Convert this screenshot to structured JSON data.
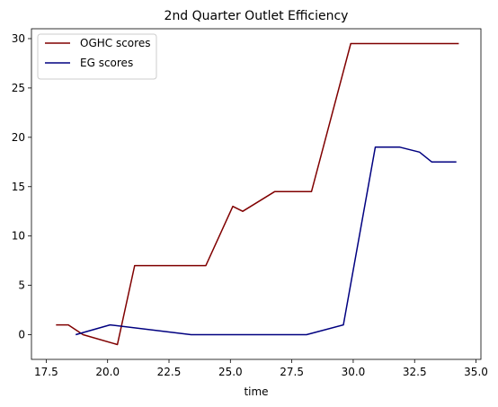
{
  "chart_data": {
    "type": "line",
    "title": "2nd Quarter Outlet Efficiency",
    "xlabel": "time",
    "ylabel": "",
    "xlim": [
      16.9,
      35.2
    ],
    "ylim": [
      -2.5,
      31.0
    ],
    "xticks": [
      17.5,
      20.0,
      22.5,
      25.0,
      27.5,
      30.0,
      32.5,
      35.0
    ],
    "xtick_labels": [
      "17.5",
      "20.0",
      "22.5",
      "25.0",
      "27.5",
      "30.0",
      "32.5",
      "35.0"
    ],
    "yticks": [
      0,
      5,
      10,
      15,
      20,
      25,
      30
    ],
    "ytick_labels": [
      "0",
      "5",
      "10",
      "15",
      "20",
      "25",
      "30"
    ],
    "grid": false,
    "legend_position": "top-left",
    "series": [
      {
        "name": "OGHC scores",
        "color": "#800000",
        "x": [
          17.9,
          18.4,
          19.0,
          20.4,
          21.1,
          22.5,
          24.0,
          25.1,
          25.5,
          26.8,
          28.3,
          29.9,
          31.0,
          34.3
        ],
        "y": [
          1.0,
          1.0,
          0.0,
          -1.0,
          7.0,
          7.0,
          7.0,
          13.0,
          12.5,
          14.5,
          14.5,
          29.5,
          29.5,
          29.5
        ]
      },
      {
        "name": "EG scores",
        "color": "#000080",
        "x": [
          18.7,
          20.1,
          23.4,
          26.0,
          28.1,
          29.6,
          30.9,
          31.9,
          32.7,
          33.2,
          34.2
        ],
        "y": [
          0.0,
          1.0,
          0.0,
          0.0,
          0.0,
          1.0,
          19.0,
          19.0,
          18.5,
          17.5,
          17.5
        ]
      }
    ]
  }
}
